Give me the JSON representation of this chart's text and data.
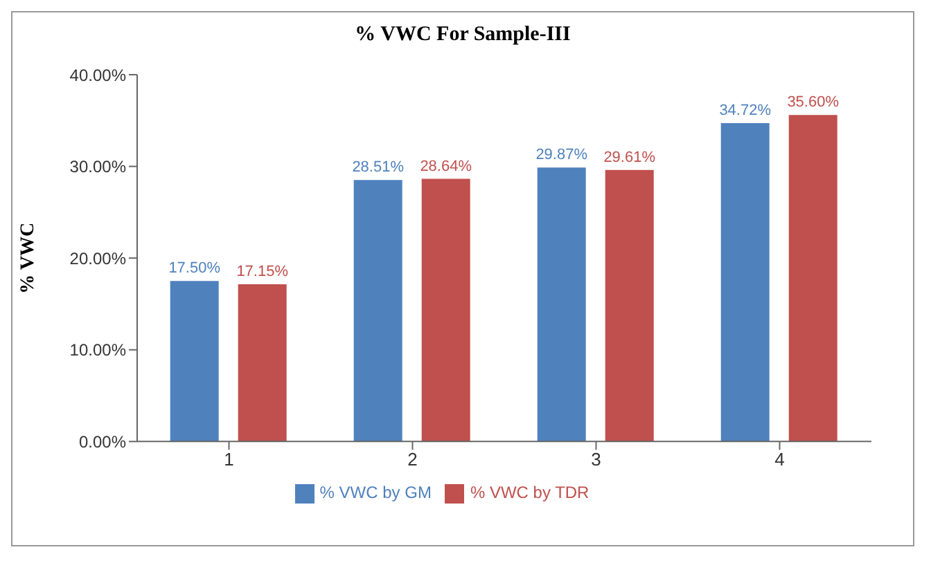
{
  "chart_data": {
    "type": "bar",
    "title": "% VWC For Sample-III",
    "ylabel": "% VWC",
    "categories": [
      "1",
      "2",
      "3",
      "4"
    ],
    "series": [
      {
        "name": "% VWC by GM",
        "color": "#4f81bd",
        "values": [
          17.5,
          28.51,
          29.87,
          34.72
        ],
        "value_labels": [
          "17.50%",
          "28.51%",
          "29.87%",
          "34.72%"
        ]
      },
      {
        "name": "% VWC by TDR",
        "color": "#c0504d",
        "values": [
          17.15,
          28.64,
          29.61,
          35.6
        ],
        "value_labels": [
          "17.15%",
          "28.64%",
          "29.61%",
          "35.60%"
        ]
      }
    ],
    "ylim": [
      0,
      40
    ],
    "yticks": [
      {
        "value": 0,
        "label": "0.00%"
      },
      {
        "value": 10,
        "label": "10.00%"
      },
      {
        "value": 20,
        "label": "20.00%"
      },
      {
        "value": 30,
        "label": "30.00%"
      },
      {
        "value": 40,
        "label": "40.00%"
      }
    ],
    "grid": false,
    "legend": "bottom"
  }
}
